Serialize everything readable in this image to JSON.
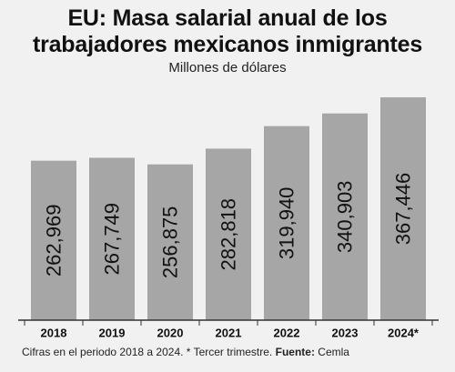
{
  "title_line1": "EU: Masa salarial anual de los",
  "title_line2": "trabajadores mexicanos inmigrantes",
  "subtitle": "Millones de dólares",
  "footnote": {
    "note": "Cifras en el periodo 2018 a 2024. * Tercer trimestre.",
    "source_label": "Fuente:",
    "source": "Cemla"
  },
  "colors": {
    "bar": "#a6a6a6",
    "axis": "#333333",
    "background": "#f1f1f1",
    "label": "#111111"
  },
  "chart_data": {
    "type": "bar",
    "title": "EU: Masa salarial anual de los trabajadores mexicanos inmigrantes",
    "subtitle": "Millones de dólares",
    "categories": [
      "2018",
      "2019",
      "2020",
      "2021",
      "2022",
      "2023",
      "2024*"
    ],
    "values": [
      262969,
      267749,
      256875,
      282818,
      319940,
      340903,
      367446
    ],
    "value_labels": [
      "262,969",
      "267,749",
      "256,875",
      "282,818",
      "319,940",
      "340,903",
      "367,446"
    ],
    "ylim": [
      0,
      367446
    ],
    "grid": false,
    "legend": "none"
  }
}
